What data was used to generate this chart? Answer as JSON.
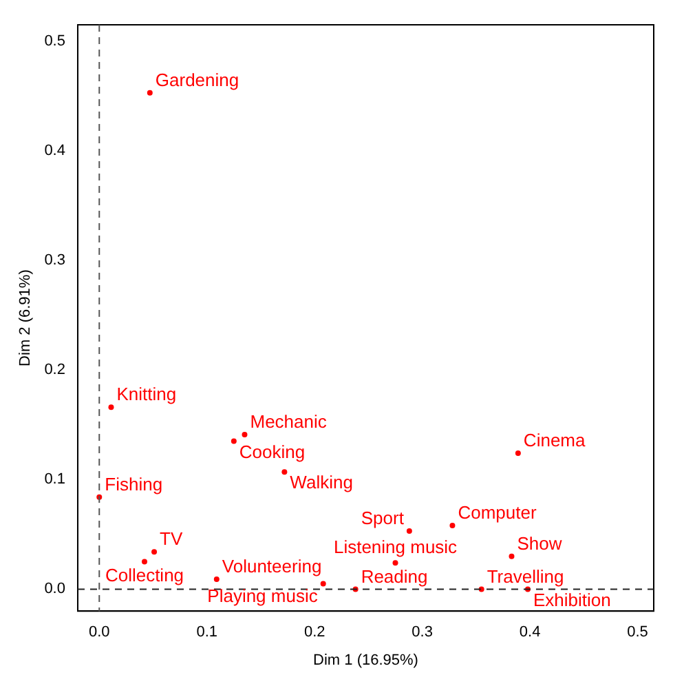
{
  "chart_data": {
    "type": "scatter",
    "xlabel": "Dim 1 (16.95%)",
    "ylabel": "Dim 2 (6.91%)",
    "x": [
      0.047,
      0.011,
      0.125,
      0.135,
      0.172,
      0.0,
      0.051,
      0.042,
      0.109,
      0.208,
      0.238,
      0.275,
      0.288,
      0.328,
      0.389,
      0.383,
      0.355,
      0.398
    ],
    "series": [
      {
        "color": "#ff0000",
        "values": [
          0.453,
          0.166,
          0.135,
          0.141,
          0.107,
          0.084,
          0.034,
          0.025,
          0.009,
          0.005,
          0.0,
          0.024,
          0.053,
          0.058,
          0.124,
          0.03,
          0.0,
          0.0
        ]
      }
    ],
    "annotations": [
      {
        "text": "Gardening",
        "x": 0.047,
        "y": 0.453
      },
      {
        "text": "Knitting",
        "x": 0.011,
        "y": 0.166
      },
      {
        "text": "Cooking",
        "x": 0.125,
        "y": 0.135
      },
      {
        "text": "Mechanic",
        "x": 0.135,
        "y": 0.141
      },
      {
        "text": "Walking",
        "x": 0.172,
        "y": 0.107
      },
      {
        "text": "Fishing",
        "x": 0.0,
        "y": 0.084
      },
      {
        "text": "TV",
        "x": 0.051,
        "y": 0.034
      },
      {
        "text": "Collecting",
        "x": 0.042,
        "y": 0.025
      },
      {
        "text": "Volunteering",
        "x": 0.109,
        "y": 0.009
      },
      {
        "text": "Playing music",
        "x": 0.208,
        "y": 0.005
      },
      {
        "text": "Reading",
        "x": 0.238,
        "y": 0.0
      },
      {
        "text": "Listening music",
        "x": 0.275,
        "y": 0.024
      },
      {
        "text": "Sport",
        "x": 0.288,
        "y": 0.053
      },
      {
        "text": "Computer",
        "x": 0.328,
        "y": 0.058
      },
      {
        "text": "Cinema",
        "x": 0.389,
        "y": 0.124
      },
      {
        "text": "Show",
        "x": 0.383,
        "y": 0.03
      },
      {
        "text": "Travelling",
        "x": 0.355,
        "y": 0.0
      },
      {
        "text": "Exhibition",
        "x": 0.398,
        "y": 0.0
      }
    ],
    "xlim": [
      -0.02,
      0.515
    ],
    "ylim": [
      -0.02,
      0.515
    ],
    "xticks": [
      {
        "value": 0,
        "label": "0.0"
      },
      0.1,
      0.2,
      0.3,
      0.4,
      0.5
    ],
    "yticks": [
      {
        "value": 0,
        "label": "0.0"
      },
      0.1,
      0.2,
      0.3,
      0.4,
      0.5
    ],
    "ref_lines": [
      {
        "axis": "x",
        "value": 0,
        "line_style": "dashed",
        "color": "#555555"
      },
      {
        "axis": "y",
        "value": 0,
        "line_style": "dashed",
        "color": "#222222"
      }
    ],
    "marker": "circle",
    "grid": false,
    "legend": false
  }
}
